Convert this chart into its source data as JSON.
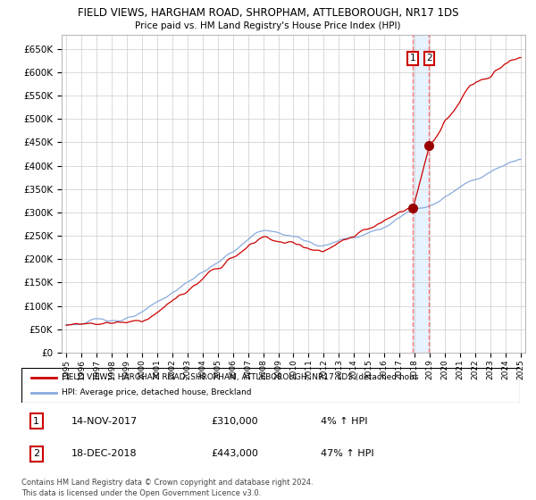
{
  "title1": "FIELD VIEWS, HARGHAM ROAD, SHROPHAM, ATTLEBOROUGH, NR17 1DS",
  "title2": "Price paid vs. HM Land Registry's House Price Index (HPI)",
  "legend_label1": "FIELD VIEWS, HARGHAM ROAD, SHROPHAM, ATTLEBOROUGH, NR17 1DS (detached hous",
  "legend_label2": "HPI: Average price, detached house, Breckland",
  "annotation1": {
    "num": "1",
    "date": "14-NOV-2017",
    "price": "£310,000",
    "hpi": "4% ↑ HPI"
  },
  "annotation2": {
    "num": "2",
    "date": "18-DEC-2018",
    "price": "£443,000",
    "hpi": "47% ↑ HPI"
  },
  "footnote": "Contains HM Land Registry data © Crown copyright and database right 2024.\nThis data is licensed under the Open Government Licence v3.0.",
  "ylim": [
    0,
    680000
  ],
  "yticks": [
    0,
    50000,
    100000,
    150000,
    200000,
    250000,
    300000,
    350000,
    400000,
    450000,
    500000,
    550000,
    600000,
    650000
  ],
  "line1_color": "#cc0000",
  "line2_color": "#88aadd",
  "vline_color": "#ff6666",
  "shade_color": "#ddeeff",
  "sale1_x": 2017.875,
  "sale1_y": 310000,
  "sale2_x": 2018.958,
  "sale2_y": 443000,
  "xlim_start": 1994.7,
  "xlim_end": 2025.3
}
